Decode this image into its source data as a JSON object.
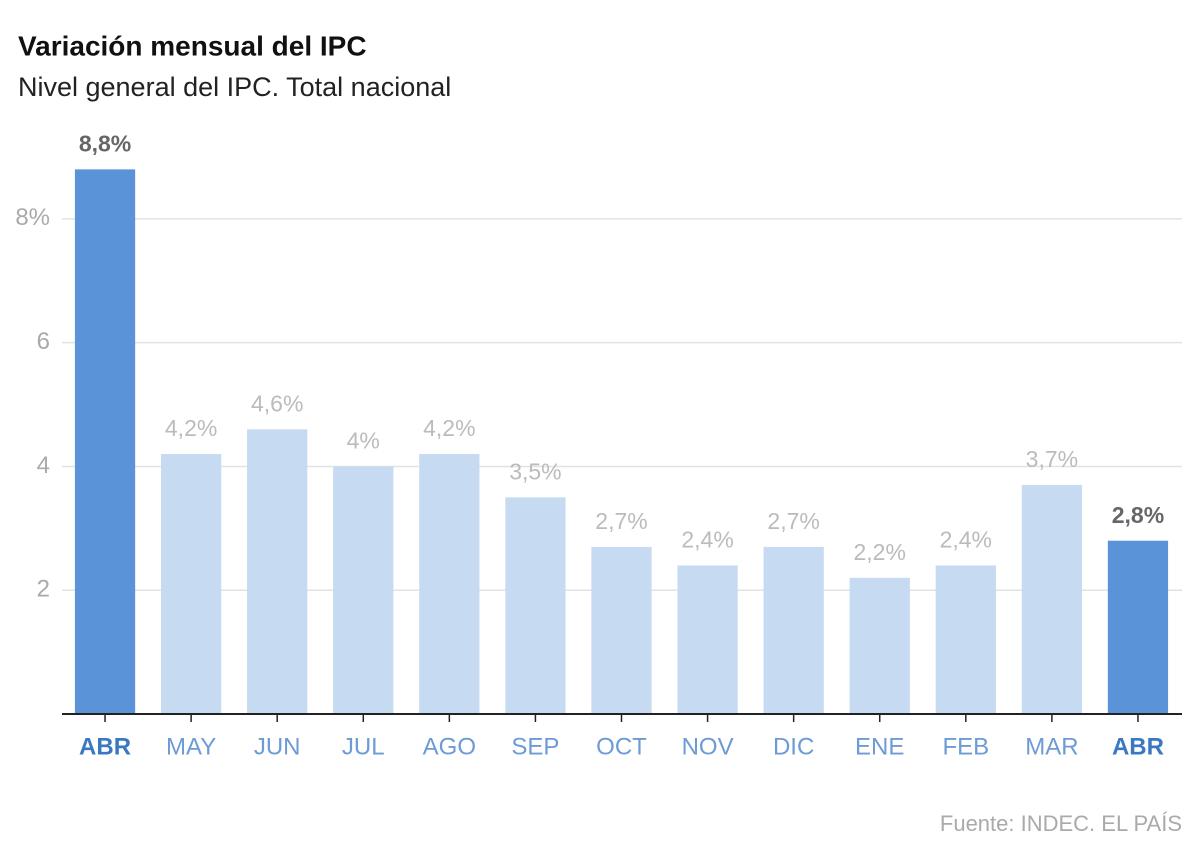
{
  "chart_data": {
    "type": "bar",
    "title": "Variación mensual del IPC",
    "subtitle": "Nivel general del IPC. Total nacional",
    "source": "Fuente: INDEC. EL PAÍS",
    "categories": [
      "ABR",
      "MAY",
      "JUN",
      "JUL",
      "AGO",
      "SEP",
      "OCT",
      "NOV",
      "DIC",
      "ENE",
      "FEB",
      "MAR",
      "ABR"
    ],
    "values": [
      8.8,
      4.2,
      4.6,
      4,
      4.2,
      3.5,
      2.7,
      2.4,
      2.7,
      2.2,
      2.4,
      3.7,
      2.8
    ],
    "value_labels": [
      "8,8%",
      "4,2%",
      "4,6%",
      "4%",
      "4,2%",
      "3,5%",
      "2,7%",
      "2,4%",
      "2,7%",
      "2,2%",
      "2,4%",
      "3,7%",
      "2,8%"
    ],
    "color": "#c6daf2",
    "highlight_color": "#5b93d9",
    "highlight": [
      0,
      12
    ],
    "ylim": [
      0,
      9
    ],
    "yticks": [
      {
        "value": 2,
        "label": "2"
      },
      {
        "value": 4,
        "label": "4"
      },
      {
        "value": 6,
        "label": "6"
      },
      {
        "value": 8,
        "label": "8%"
      }
    ],
    "grid": true
  }
}
